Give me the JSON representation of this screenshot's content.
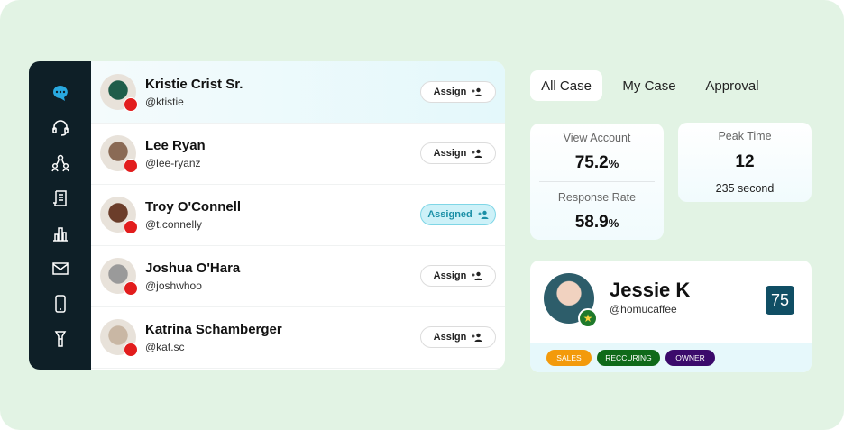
{
  "contacts": [
    {
      "name": "Kristie Crist Sr.",
      "handle": "@ktistie",
      "action": "Assign"
    },
    {
      "name": "Lee Ryan",
      "handle": "@lee-ryanz",
      "action": "Assign"
    },
    {
      "name": "Troy O'Connell",
      "handle": "@t.connelly",
      "action": "Assigned"
    },
    {
      "name": "Joshua O'Hara",
      "handle": "@joshwhoo",
      "action": "Assign"
    },
    {
      "name": "Katrina Schamberger",
      "handle": "@kat.sc",
      "action": "Assign"
    }
  ],
  "tabs": [
    "All Case",
    "My Case",
    "Approval"
  ],
  "stats": {
    "view_account": {
      "label": "View Account",
      "value": "75.2",
      "unit": "%"
    },
    "response_rate": {
      "label": "Response Rate",
      "value": "58.9",
      "unit": "%"
    },
    "peak_time": {
      "label": "Peak Time",
      "value": "12",
      "detail": "235 second"
    }
  },
  "profile": {
    "name": "Jessie K",
    "handle": "@homucaffee",
    "score": "75",
    "tags": [
      "SALES",
      "RECCURING",
      "OWNER"
    ]
  }
}
